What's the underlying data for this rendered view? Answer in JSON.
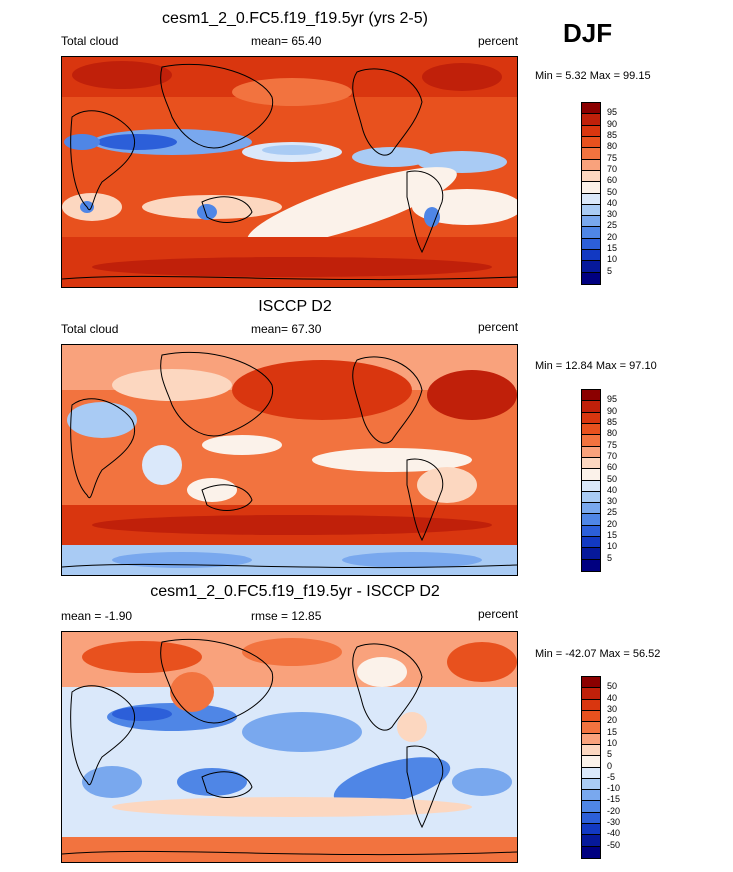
{
  "season": "DJF",
  "panels": [
    {
      "title": "cesm1_2_0.FC5.f19_f19.5yr (yrs 2-5)",
      "left_label": "Total cloud",
      "center_label": "mean=  65.40",
      "right_label": "percent",
      "minmax": "Min =   5.32 Max =  99.15",
      "colorbar": {
        "levels": [
          "95",
          "90",
          "85",
          "80",
          "75",
          "70",
          "60",
          "50",
          "40",
          "30",
          "25",
          "20",
          "15",
          "10",
          "5"
        ],
        "colors": [
          "#8b0000",
          "#c0200a",
          "#d9360f",
          "#e8511e",
          "#f2733f",
          "#f9a27c",
          "#fcd7c0",
          "#fbf2ea",
          "#dae8fa",
          "#a9cbf4",
          "#79a8ee",
          "#4f86e6",
          "#2c5fd9",
          "#1239c2",
          "#06199a",
          "#000080"
        ]
      }
    },
    {
      "title": "ISCCP D2",
      "left_label": "Total cloud",
      "center_label": "mean=  67.30",
      "right_label": "percent",
      "minmax": "Min =  12.84 Max =  97.10",
      "colorbar": {
        "levels": [
          "95",
          "90",
          "85",
          "80",
          "75",
          "70",
          "60",
          "50",
          "40",
          "30",
          "25",
          "20",
          "15",
          "10",
          "5"
        ],
        "colors": [
          "#8b0000",
          "#c0200a",
          "#d9360f",
          "#e8511e",
          "#f2733f",
          "#f9a27c",
          "#fcd7c0",
          "#fbf2ea",
          "#dae8fa",
          "#a9cbf4",
          "#79a8ee",
          "#4f86e6",
          "#2c5fd9",
          "#1239c2",
          "#06199a",
          "#000080"
        ]
      }
    },
    {
      "title": "cesm1_2_0.FC5.f19_f19.5yr - ISCCP D2",
      "left_label": "mean =  -1.90",
      "center_label": "rmse =  12.85",
      "right_label": "percent",
      "minmax": "Min = -42.07 Max =  56.52",
      "colorbar": {
        "levels": [
          "50",
          "40",
          "30",
          "20",
          "15",
          "10",
          "5",
          "0",
          "-5",
          "-10",
          "-15",
          "-20",
          "-30",
          "-40",
          "-50"
        ],
        "colors": [
          "#8b0000",
          "#c0200a",
          "#d9360f",
          "#e8511e",
          "#f2733f",
          "#f9a27c",
          "#fcd7c0",
          "#fbf2ea",
          "#dae8fa",
          "#a9cbf4",
          "#79a8ee",
          "#4f86e6",
          "#2c5fd9",
          "#1239c2",
          "#06199a",
          "#000080"
        ]
      }
    }
  ]
}
